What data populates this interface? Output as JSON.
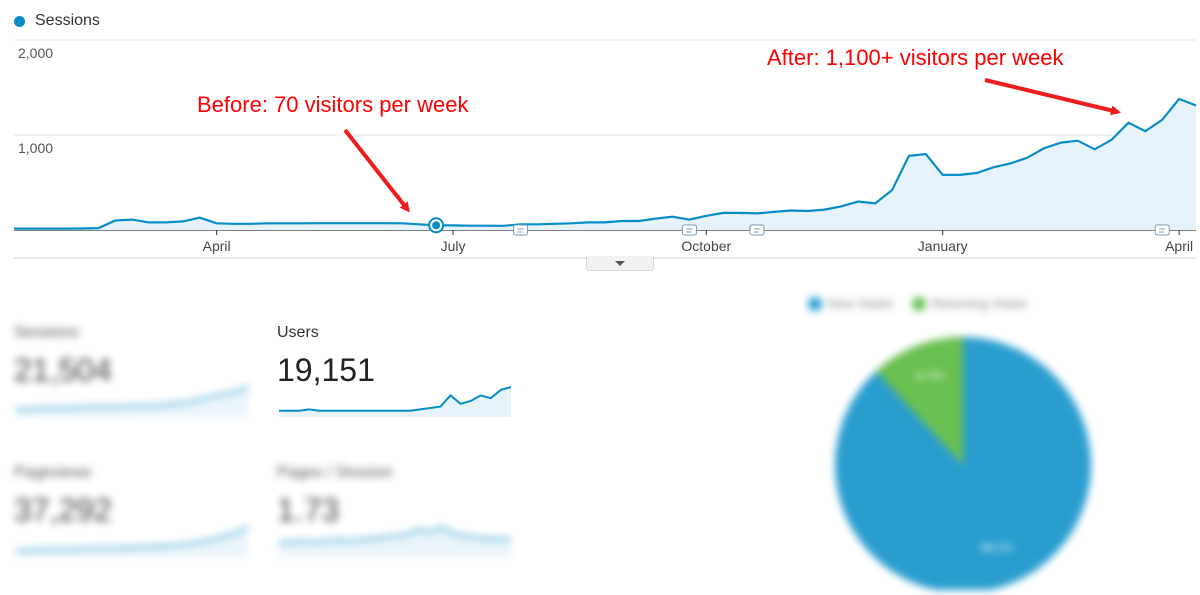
{
  "legend": {
    "label": "Sessions",
    "color": "#058dc7"
  },
  "chart_data": {
    "type": "area",
    "series": [
      {
        "name": "Sessions",
        "values": [
          15,
          15,
          15,
          15,
          16,
          20,
          100,
          110,
          80,
          80,
          90,
          130,
          70,
          65,
          65,
          70,
          70,
          70,
          72,
          72,
          72,
          72,
          72,
          70,
          60,
          50,
          48,
          45,
          45,
          44,
          60,
          60,
          65,
          70,
          80,
          80,
          95,
          95,
          120,
          140,
          110,
          150,
          180,
          180,
          175,
          190,
          205,
          200,
          215,
          250,
          300,
          280,
          420,
          780,
          800,
          580,
          580,
          600,
          660,
          700,
          760,
          860,
          920,
          940,
          850,
          950,
          1130,
          1040,
          1160,
          1380,
          1310
        ]
      }
    ],
    "x_tick_labels": [
      "April",
      "July",
      "October",
      "January",
      "April"
    ],
    "y_tick_labels": [
      "2,000",
      "1,000"
    ],
    "ylim": [
      0,
      2000
    ],
    "annotations": [
      {
        "text": "Before: 70 visitors per week",
        "color": "#ff0000"
      },
      {
        "text": "After: 1,100+ visitors per week",
        "color": "#ff0000"
      }
    ],
    "series_color": "#058dc7",
    "fill_color": "#e6f3fb"
  },
  "metrics": [
    {
      "label": "Sessions",
      "value": "21,504",
      "blurred": true,
      "spark": [
        5,
        5,
        6,
        6,
        6,
        6,
        7,
        7,
        7,
        7,
        8,
        8,
        8,
        9,
        10,
        11,
        14,
        16,
        18,
        20,
        24
      ]
    },
    {
      "label": "Users",
      "value": "19,151",
      "blurred": false,
      "spark": [
        3,
        3,
        3,
        4,
        3,
        3,
        3,
        3,
        3,
        3,
        3,
        3,
        3,
        3,
        4,
        5,
        6,
        14,
        8,
        10,
        14,
        12,
        18,
        20
      ]
    },
    {
      "label": "Pageviews",
      "value": "37,292",
      "blurred": true,
      "spark": [
        4,
        4,
        5,
        5,
        5,
        5,
        6,
        6,
        6,
        6,
        7,
        7,
        8,
        8,
        9,
        10,
        12,
        14,
        17,
        20,
        25
      ]
    },
    {
      "label": "Pages / Session",
      "value": "1.73",
      "blurred": true,
      "spark": [
        10,
        10,
        11,
        10,
        11,
        12,
        11,
        12,
        13,
        14,
        15,
        16,
        20,
        18,
        22,
        17,
        15,
        14,
        13,
        13,
        12
      ]
    }
  ],
  "pie": {
    "legend": [
      {
        "label": "New Visitor",
        "color": "#058dc7"
      },
      {
        "label": "Returning Visitor",
        "color": "#50b432"
      }
    ],
    "slices": [
      {
        "label": "New Visitor",
        "percent": 88.1,
        "color": "#058dc7"
      },
      {
        "label": "Returning Visitor",
        "percent": 11.9,
        "color": "#50b432"
      }
    ],
    "slice_labels": [
      "88.1%",
      "11.9%"
    ]
  }
}
